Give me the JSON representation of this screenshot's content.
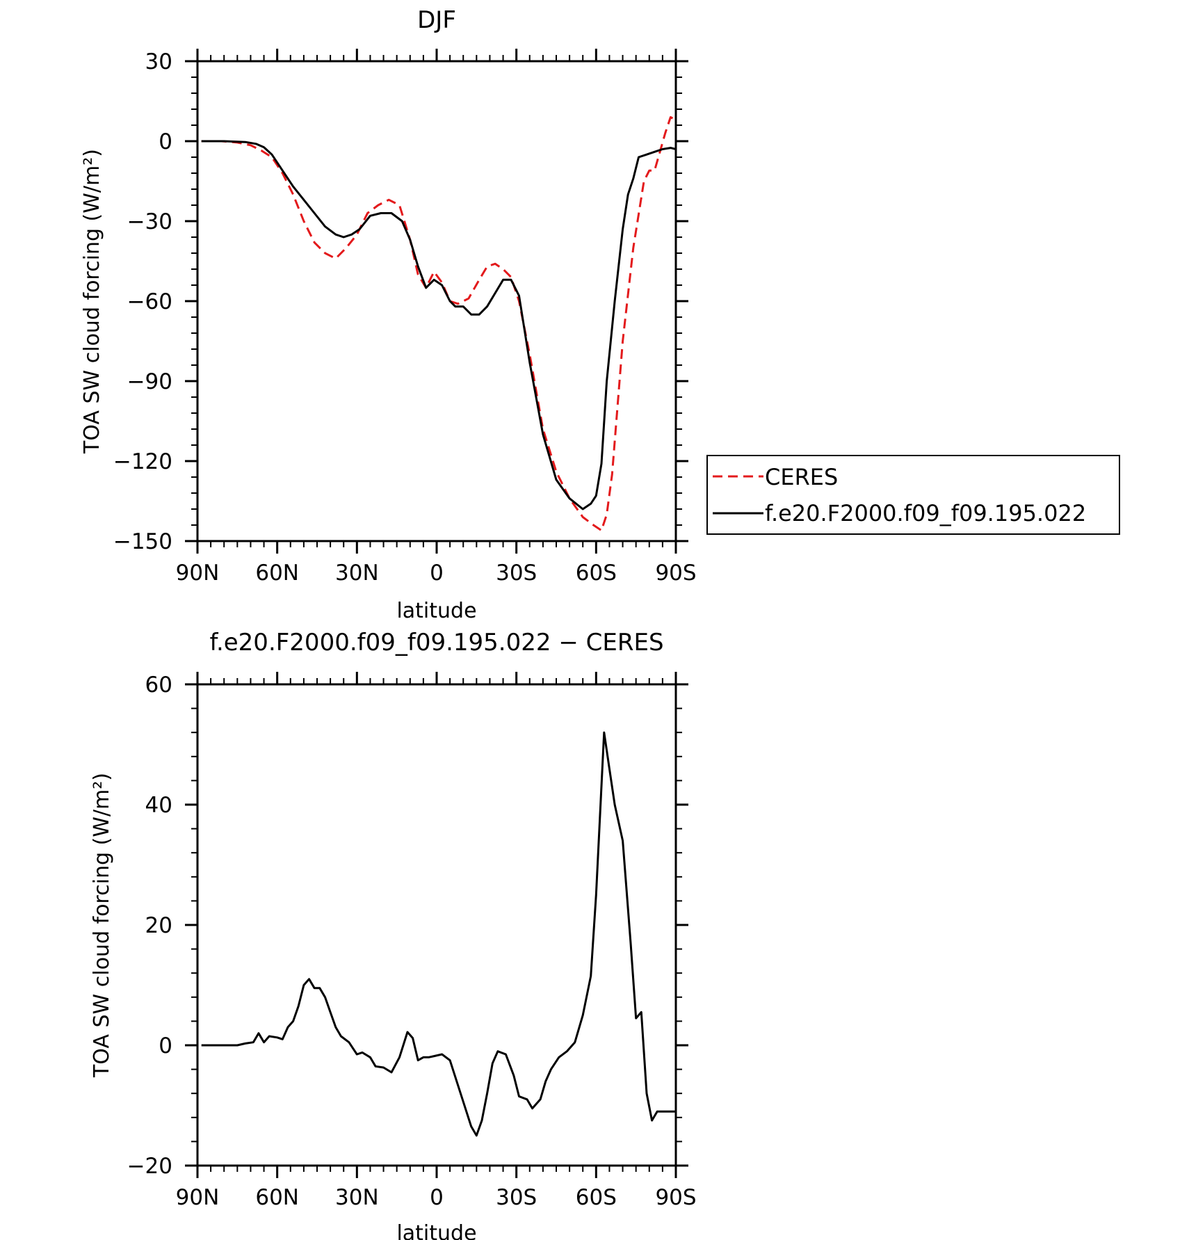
{
  "chart_data": [
    {
      "type": "line",
      "title": "DJF",
      "xlabel": "latitude",
      "ylabel": "TOA SW cloud forcing (W/m²)",
      "xlim": [
        -90,
        90
      ],
      "ylim": [
        -150,
        30
      ],
      "xticks": [
        {
          "value": -90,
          "label": "90N"
        },
        {
          "value": -60,
          "label": "60N"
        },
        {
          "value": -30,
          "label": "30N"
        },
        {
          "value": 0,
          "label": "0"
        },
        {
          "value": 30,
          "label": "30S"
        },
        {
          "value": 60,
          "label": "60S"
        },
        {
          "value": 90,
          "label": "90S"
        }
      ],
      "yticks": [
        {
          "value": 30,
          "label": "30"
        },
        {
          "value": 0,
          "label": "0"
        },
        {
          "value": -30,
          "label": "−30"
        },
        {
          "value": -60,
          "label": "−60"
        },
        {
          "value": -90,
          "label": "−90"
        },
        {
          "value": -120,
          "label": "−120"
        },
        {
          "value": -150,
          "label": "−150"
        }
      ],
      "legend": {
        "placement": "right"
      },
      "series": [
        {
          "name": "CERES",
          "color": "#e31a1c",
          "dash": "dashed",
          "x": [
            -88.5,
            -81,
            -75,
            -70,
            -66,
            -62,
            -58,
            -54,
            -50,
            -46,
            -42,
            -38,
            -34,
            -30,
            -26,
            -22,
            -18,
            -14,
            -10,
            -7,
            -4,
            -1,
            2,
            5,
            8,
            12,
            16,
            19,
            22,
            25,
            28,
            31,
            35,
            40,
            45,
            50,
            55,
            59,
            62,
            64,
            66,
            70,
            74,
            78,
            80,
            82,
            84,
            86,
            88,
            90
          ],
          "y": [
            0,
            0,
            -0.5,
            -1.5,
            -3.5,
            -6,
            -12,
            -20,
            -30,
            -38,
            -42,
            -44,
            -40,
            -35,
            -27,
            -24,
            -22,
            -24,
            -37,
            -50,
            -55,
            -49,
            -53,
            -60,
            -61,
            -59,
            -52,
            -47,
            -46,
            -48,
            -51,
            -60,
            -80,
            -108,
            -124,
            -134,
            -141,
            -144,
            -146,
            -140,
            -125,
            -75,
            -40,
            -15,
            -11,
            -11,
            -4,
            3,
            9,
            8
          ]
        },
        {
          "name": "f.e20.F2000.f09_f09.195.022",
          "color": "#000000",
          "dash": "solid",
          "x": [
            -88.5,
            -80,
            -72,
            -68,
            -65,
            -62,
            -58,
            -54,
            -50,
            -46,
            -42,
            -38,
            -35,
            -32,
            -29,
            -25,
            -21,
            -17,
            -13,
            -10,
            -7,
            -4,
            -1,
            2,
            5,
            7,
            10,
            13,
            16,
            19,
            22,
            25,
            28,
            31,
            35,
            40,
            45,
            50,
            55,
            58,
            60,
            62,
            64,
            67,
            70,
            72,
            74,
            76,
            79,
            82,
            85,
            88,
            90
          ],
          "y": [
            0,
            0,
            -0.3,
            -1,
            -2.3,
            -5,
            -11,
            -17,
            -22,
            -27,
            -32,
            -35,
            -36,
            -35,
            -33,
            -28,
            -27,
            -27,
            -30,
            -37,
            -47,
            -55,
            -52,
            -54,
            -60,
            -62,
            -62,
            -65,
            -65,
            -62,
            -57,
            -52,
            -52,
            -58,
            -83,
            -110,
            -127,
            -134,
            -138,
            -136,
            -133,
            -121,
            -90,
            -60,
            -33,
            -20,
            -14,
            -6,
            -5,
            -4,
            -3,
            -2.5,
            -3
          ]
        }
      ]
    },
    {
      "type": "line",
      "title": "f.e20.F2000.f09_f09.195.022 − CERES",
      "xlabel": "latitude",
      "ylabel": "TOA SW cloud forcing (W/m²)",
      "xlim": [
        -90,
        90
      ],
      "ylim": [
        -20,
        60
      ],
      "xticks": [
        {
          "value": -90,
          "label": "90N"
        },
        {
          "value": -60,
          "label": "60N"
        },
        {
          "value": -30,
          "label": "30N"
        },
        {
          "value": 0,
          "label": "0"
        },
        {
          "value": 30,
          "label": "30S"
        },
        {
          "value": 60,
          "label": "60S"
        },
        {
          "value": 90,
          "label": "90S"
        }
      ],
      "yticks": [
        {
          "value": 60,
          "label": "60"
        },
        {
          "value": 40,
          "label": "40"
        },
        {
          "value": 20,
          "label": "20"
        },
        {
          "value": 0,
          "label": "0"
        },
        {
          "value": -20,
          "label": "−20"
        }
      ],
      "series": [
        {
          "color": "#000000",
          "dash": "solid",
          "x": [
            -88.5,
            -78,
            -75,
            -72,
            -69,
            -67,
            -65,
            -63,
            -60,
            -58,
            -56,
            -54,
            -52,
            -50,
            -48,
            -46,
            -44,
            -42,
            -40,
            -38,
            -36,
            -33,
            -30,
            -28,
            -25,
            -23,
            -20,
            -17,
            -14,
            -11,
            -9,
            -7,
            -5,
            -3,
            -1,
            2,
            5,
            9,
            13,
            15,
            17,
            19,
            21,
            23,
            26,
            29,
            31,
            34,
            36,
            39,
            41,
            43,
            46,
            49,
            52,
            55,
            58,
            60,
            63,
            65,
            67,
            70,
            73,
            75,
            77,
            79,
            81,
            83,
            85,
            88,
            90
          ],
          "y": [
            0,
            0,
            0,
            0.3,
            0.5,
            2,
            0.5,
            1.5,
            1.3,
            1,
            3,
            4,
            6.5,
            10,
            11,
            9.5,
            9.5,
            8,
            5.5,
            3,
            1.5,
            0.5,
            -1.5,
            -1.2,
            -2,
            -3.5,
            -3.7,
            -4.5,
            -2,
            2.2,
            1.2,
            -2.5,
            -2,
            -2,
            -1.8,
            -1.5,
            -2.5,
            -8,
            -13.5,
            -15,
            -12.5,
            -8,
            -3,
            -1,
            -1.5,
            -5,
            -8.5,
            -9,
            -10.5,
            -9,
            -6,
            -4,
            -2,
            -1,
            0.5,
            5,
            11.5,
            25,
            52,
            46,
            40,
            34,
            17,
            4.5,
            5.5,
            -8,
            -12.5,
            -11,
            -11,
            -11,
            -11
          ]
        }
      ]
    }
  ]
}
